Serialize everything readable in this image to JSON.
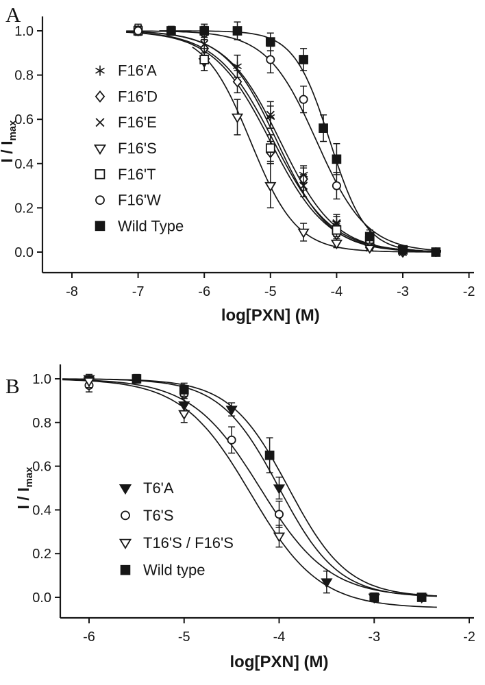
{
  "figure": {
    "background": "#ffffff",
    "ink": "#161616"
  },
  "chart_data": [
    {
      "panel_label": "A",
      "type": "scatter",
      "title": "",
      "xlabel": "log[PXN] (M)",
      "ylabel": "I / I",
      "ylabel_sub": "max",
      "xlim": [
        -8.45,
        -2.0
      ],
      "ylim": [
        -0.09,
        1.07
      ],
      "xticks": [
        -8,
        -7,
        -6,
        -5,
        -4,
        -3,
        -2
      ],
      "yticks": [
        0,
        0.2,
        0.4,
        0.6,
        0.8,
        1.0
      ],
      "grid": false,
      "legend_position": "inside-left",
      "series": [
        {
          "name": "F16'A",
          "marker": "star",
          "fit": {
            "model": "sigmoid",
            "logIC50": -4.85,
            "hill": 1.05
          },
          "points": [
            [
              -6.5,
              1.0,
              0.02
            ],
            [
              -6,
              1.0,
              0.02
            ],
            [
              -5.5,
              0.84,
              0.05
            ],
            [
              -5,
              0.61,
              0.05
            ],
            [
              -4.5,
              0.35,
              0.04
            ],
            [
              -4,
              0.13,
              0.03
            ],
            [
              -3.5,
              0.03,
              0.02
            ],
            [
              -3,
              0.01,
              0.01
            ],
            [
              -2.5,
              0.0,
              0.01
            ]
          ]
        },
        {
          "name": "F16'D",
          "marker": "diamond-open",
          "fit": {
            "model": "sigmoid",
            "logIC50": -4.95,
            "hill": 1.0
          },
          "points": [
            [
              -7,
              1.0,
              0.02
            ],
            [
              -6,
              0.92,
              0.04
            ],
            [
              -5.5,
              0.77,
              0.05
            ],
            [
              -5,
              0.45,
              0.05
            ],
            [
              -4.5,
              0.33,
              0.05
            ],
            [
              -4,
              0.08,
              0.03
            ],
            [
              -3.5,
              0.02,
              0.01
            ],
            [
              -3,
              0.0,
              0.01
            ]
          ]
        },
        {
          "name": "F16'E",
          "marker": "x",
          "fit": {
            "model": "sigmoid",
            "logIC50": -4.9,
            "hill": 1.1
          },
          "points": [
            [
              -7,
              1.01,
              0.02
            ],
            [
              -6,
              0.94,
              0.05
            ],
            [
              -5,
              0.62,
              0.06
            ],
            [
              -4.5,
              0.3,
              0.05
            ],
            [
              -4,
              0.13,
              0.04
            ],
            [
              -3.5,
              0.02,
              0.01
            ],
            [
              -3,
              0.0,
              0.01
            ]
          ]
        },
        {
          "name": "F16'S",
          "marker": "triangle-open",
          "fit": {
            "model": "sigmoid",
            "logIC50": -5.3,
            "hill": 1.25
          },
          "points": [
            [
              -6,
              0.86,
              0.04
            ],
            [
              -5.5,
              0.61,
              0.08
            ],
            [
              -5,
              0.3,
              0.1
            ],
            [
              -4.5,
              0.09,
              0.04
            ],
            [
              -4,
              0.04,
              0.02
            ],
            [
              -3.5,
              0.02,
              0.01
            ],
            [
              -3,
              0.01,
              0.01
            ]
          ]
        },
        {
          "name": "F16'T",
          "marker": "square-open",
          "fit": {
            "model": "sigmoid",
            "logIC50": -5.0,
            "hill": 1.0
          },
          "points": [
            [
              -7,
              1.0,
              0.02
            ],
            [
              -6,
              0.87,
              0.05
            ],
            [
              -5,
              0.47,
              0.06
            ],
            [
              -4,
              0.1,
              0.03
            ],
            [
              -3.5,
              0.05,
              0.02
            ],
            [
              -3,
              0.01,
              0.01
            ]
          ]
        },
        {
          "name": "F16'W",
          "marker": "circle-open",
          "fit": {
            "model": "sigmoid",
            "logIC50": -4.3,
            "hill": 1.15
          },
          "points": [
            [
              -7,
              1.0,
              0.02
            ],
            [
              -6,
              0.99,
              0.03
            ],
            [
              -5,
              0.87,
              0.06
            ],
            [
              -4.5,
              0.69,
              0.06
            ],
            [
              -4,
              0.3,
              0.06
            ],
            [
              -3.5,
              0.05,
              0.02
            ],
            [
              -3,
              0.01,
              0.01
            ]
          ]
        },
        {
          "name": "Wild Type",
          "marker": "square-filled",
          "fit": {
            "model": "sigmoid",
            "logIC50": -4.1,
            "hill": 1.6
          },
          "points": [
            [
              -6.5,
              1.0,
              0.02
            ],
            [
              -6,
              1.0,
              0.03
            ],
            [
              -5.5,
              1.0,
              0.04
            ],
            [
              -5,
              0.95,
              0.04
            ],
            [
              -4.5,
              0.87,
              0.05
            ],
            [
              -4.2,
              0.56,
              0.06
            ],
            [
              -4,
              0.42,
              0.07
            ],
            [
              -3.5,
              0.07,
              0.03
            ],
            [
              -3,
              0.01,
              0.01
            ],
            [
              -2.5,
              0.0,
              0.01
            ]
          ]
        }
      ]
    },
    {
      "panel_label": "B",
      "type": "scatter",
      "title": "",
      "xlabel": "log[PXN] (M)",
      "ylabel": "I / I",
      "ylabel_sub": "max",
      "xlim": [
        -6.3,
        -2.0
      ],
      "ylim": [
        -0.1,
        1.07
      ],
      "xticks": [
        -6,
        -5,
        -4,
        -3,
        -2
      ],
      "yticks": [
        0,
        0.2,
        0.4,
        0.6,
        0.8,
        1.0
      ],
      "grid": false,
      "legend_position": "inside-left",
      "series": [
        {
          "name": "T6'A",
          "marker": "triangle-filled",
          "fit": {
            "model": "sigmoid",
            "logIC50": -4.0,
            "hill": 1.4
          },
          "points": [
            [
              -6,
              1.0,
              0.02
            ],
            [
              -5,
              0.88,
              0.03
            ],
            [
              -4.5,
              0.86,
              0.03
            ],
            [
              -4,
              0.5,
              0.05
            ],
            [
              -3.5,
              0.07,
              0.05
            ],
            [
              -3,
              0.0,
              0.01
            ],
            [
              -2.5,
              0.0,
              0.01
            ]
          ]
        },
        {
          "name": "T6'S",
          "marker": "circle-open",
          "fit": {
            "model": "sigmoid",
            "logIC50": -4.2,
            "hill": 1.2
          },
          "points": [
            [
              -6,
              0.97,
              0.03
            ],
            [
              -5,
              0.93,
              0.04
            ],
            [
              -4.5,
              0.72,
              0.06
            ],
            [
              -4,
              0.38,
              0.06
            ],
            [
              -3,
              0.0,
              0.01
            ],
            [
              -2.5,
              0.0,
              0.01
            ]
          ]
        },
        {
          "name": "T16'S / F16'S",
          "marker": "triangle-open",
          "fit": {
            "model": "sigmoid",
            "logIC50": -4.3,
            "hill": 1.2,
            "bottom": -0.05
          },
          "points": [
            [
              -6,
              0.99,
              0.03
            ],
            [
              -5,
              0.84,
              0.04
            ],
            [
              -4,
              0.28,
              0.05
            ],
            [
              -3,
              0.0,
              0.01
            ]
          ]
        },
        {
          "name": "Wild type",
          "marker": "square-filled",
          "fit": {
            "model": "sigmoid",
            "logIC50": -3.9,
            "hill": 1.4
          },
          "points": [
            [
              -5.5,
              1.0,
              0.02
            ],
            [
              -5,
              0.95,
              0.03
            ],
            [
              -4.1,
              0.65,
              0.08
            ],
            [
              -3,
              0.0,
              0.02
            ],
            [
              -2.5,
              0.0,
              0.01
            ]
          ]
        }
      ]
    }
  ]
}
